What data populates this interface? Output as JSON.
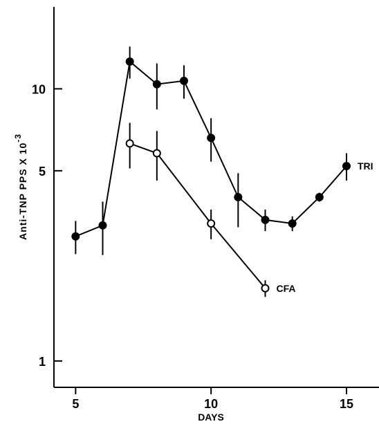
{
  "chart_data": {
    "type": "line",
    "xlabel": "DAYS",
    "ylabel": "Anti-TNP PPS X 10",
    "ylabel_exponent": "-3",
    "log_y": true,
    "xlim": [
      4.2,
      16.2
    ],
    "xticks": [
      5,
      10,
      15
    ],
    "ylim": [
      0.8,
      20
    ],
    "yticks": [
      1,
      5,
      10
    ],
    "series": [
      {
        "name": "TRI",
        "color": "#000000",
        "marker": "filled",
        "x": [
          5,
          6,
          7,
          8,
          9,
          10,
          11,
          12,
          13,
          14,
          15
        ],
        "values": [
          2.87,
          3.15,
          12.6,
          10.4,
          10.7,
          6.6,
          4.0,
          3.3,
          3.2,
          4.0,
          5.2
        ],
        "errors": [
          0.4,
          0.7,
          1.7,
          2.0,
          1.5,
          1.2,
          0.9,
          0.3,
          0.2,
          0.15,
          0.6
        ]
      },
      {
        "name": "CFA",
        "color": "#000000",
        "marker": "open",
        "x": [
          7,
          8,
          10,
          12
        ],
        "values": [
          6.3,
          5.8,
          3.2,
          1.85
        ],
        "errors": [
          1.2,
          1.2,
          0.4,
          0.13
        ]
      }
    ]
  }
}
